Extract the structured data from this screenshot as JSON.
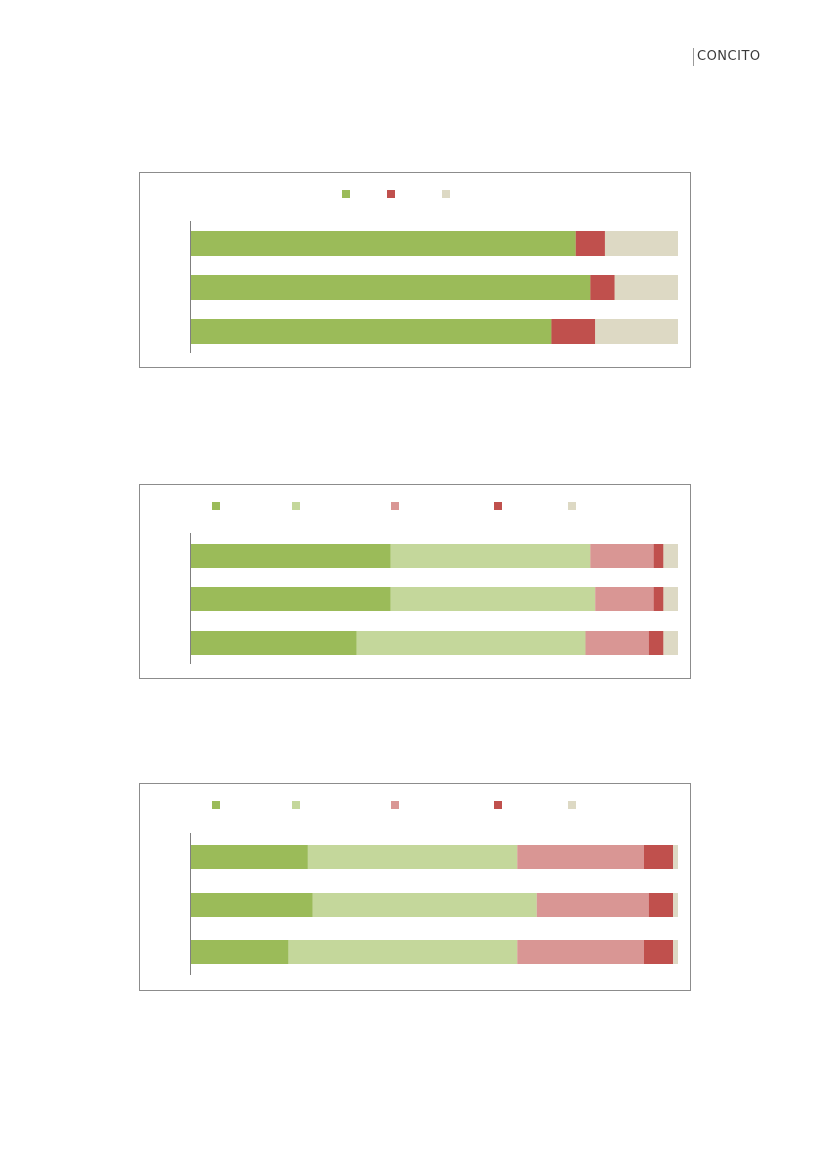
{
  "brand": {
    "name": "CONCITO"
  },
  "chart_data": [
    {
      "type": "bar",
      "orientation": "horizontal",
      "stacked": true,
      "categories": [
        "",
        "",
        ""
      ],
      "series": [
        {
          "values": [
            79,
            82,
            74
          ],
          "color": "#9BBB59"
        },
        {
          "values": [
            6,
            5,
            9
          ],
          "color": "#C0504D"
        },
        {
          "values": [
            15,
            13,
            17
          ],
          "color": "#DDD9C4"
        }
      ],
      "xlim": [
        0,
        100
      ],
      "legend": "top-center",
      "grid": false
    },
    {
      "type": "bar",
      "orientation": "horizontal",
      "stacked": true,
      "categories": [
        "",
        "",
        ""
      ],
      "series": [
        {
          "values": [
            41,
            41,
            34
          ],
          "color": "#9BBB59"
        },
        {
          "values": [
            41,
            42,
            47
          ],
          "color": "#C4D79B"
        },
        {
          "values": [
            13,
            12,
            13
          ],
          "color": "#D99694"
        },
        {
          "values": [
            2,
            2,
            3
          ],
          "color": "#C0504D"
        },
        {
          "values": [
            3,
            3,
            3
          ],
          "color": "#DDD9C4"
        }
      ],
      "xlim": [
        0,
        100
      ],
      "legend": "top-left",
      "grid": false
    },
    {
      "type": "bar",
      "orientation": "horizontal",
      "stacked": true,
      "categories": [
        "",
        "",
        ""
      ],
      "series": [
        {
          "values": [
            24,
            25,
            20
          ],
          "color": "#9BBB59"
        },
        {
          "values": [
            43,
            46,
            47
          ],
          "color": "#C4D79B"
        },
        {
          "values": [
            26,
            23,
            26
          ],
          "color": "#D99694"
        },
        {
          "values": [
            6,
            5,
            6
          ],
          "color": "#C0504D"
        },
        {
          "values": [
            1,
            1,
            1
          ],
          "color": "#DDD9C4"
        }
      ],
      "xlim": [
        0,
        100
      ],
      "legend": "top-left",
      "grid": false
    }
  ]
}
